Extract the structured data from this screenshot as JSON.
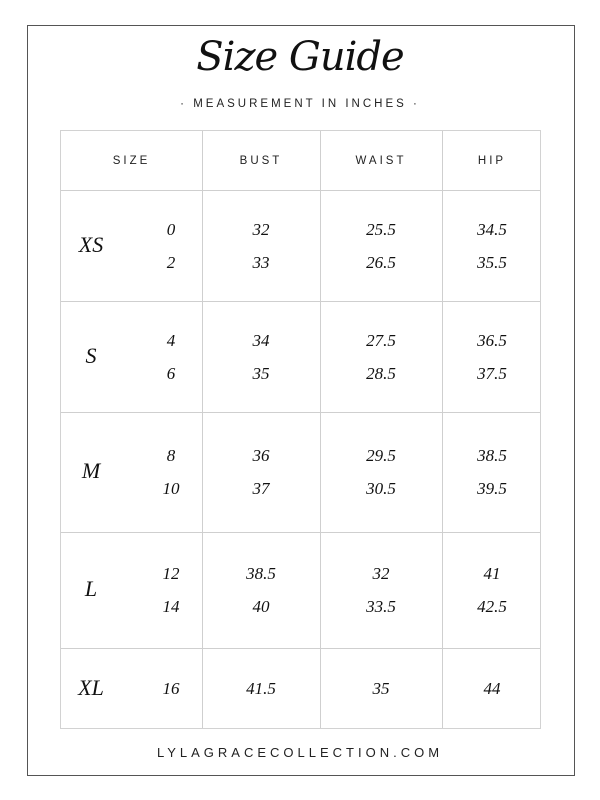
{
  "title": "Size Guide",
  "subtitle": "· MEASUREMENT IN INCHES ·",
  "footer": "LYLAGRACECOLLECTION.COM",
  "table": {
    "headers": [
      "SIZE",
      "BUST",
      "WAIST",
      "HIP"
    ],
    "rows": [
      {
        "size": "XS",
        "numbers": [
          "0",
          "2"
        ],
        "bust": [
          "32",
          "33"
        ],
        "waist": [
          "25.5",
          "26.5"
        ],
        "hip": [
          "34.5",
          "35.5"
        ]
      },
      {
        "size": "S",
        "numbers": [
          "4",
          "6"
        ],
        "bust": [
          "34",
          "35"
        ],
        "waist": [
          "27.5",
          "28.5"
        ],
        "hip": [
          "36.5",
          "37.5"
        ]
      },
      {
        "size": "M",
        "numbers": [
          "8",
          "10"
        ],
        "bust": [
          "36",
          "37"
        ],
        "waist": [
          "29.5",
          "30.5"
        ],
        "hip": [
          "38.5",
          "39.5"
        ]
      },
      {
        "size": "L",
        "numbers": [
          "12",
          "14"
        ],
        "bust": [
          "38.5",
          "40"
        ],
        "waist": [
          "32",
          "33.5"
        ],
        "hip": [
          "41",
          "42.5"
        ]
      },
      {
        "size": "XL",
        "numbers": [
          "16"
        ],
        "bust": [
          "41.5"
        ],
        "waist": [
          "35"
        ],
        "hip": [
          "44"
        ]
      }
    ]
  }
}
